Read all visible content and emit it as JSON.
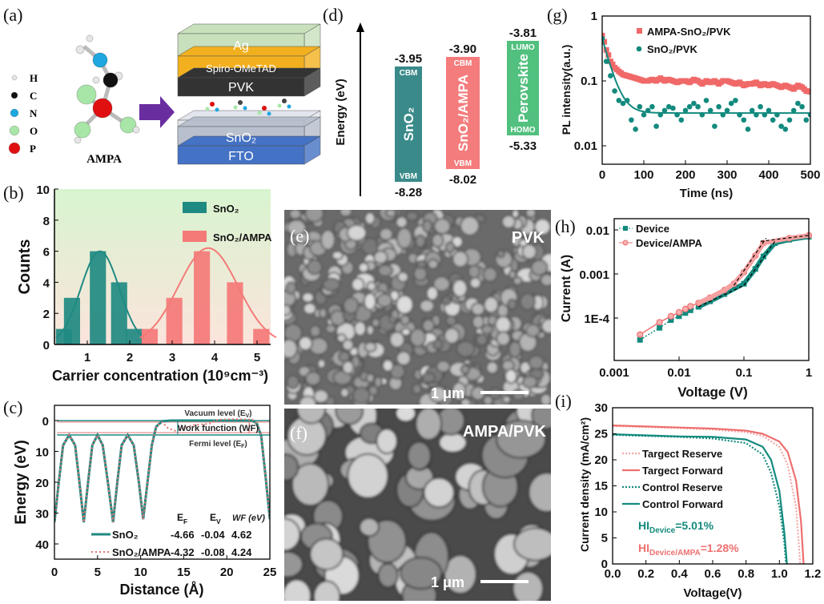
{
  "figure": {
    "panel_labels": {
      "a": "(a)",
      "b": "(b)",
      "c": "(c)",
      "d": "(d)",
      "e": "(e)",
      "f": "(f)",
      "g": "(g)",
      "h": "(h)",
      "i": "(i)"
    },
    "a": {
      "legend": [
        {
          "symbol": "H",
          "color": "#e6e6e6"
        },
        {
          "symbol": "C",
          "color": "#111111"
        },
        {
          "symbol": "N",
          "color": "#1ea7e0"
        },
        {
          "symbol": "O",
          "color": "#a8e6a8"
        },
        {
          "symbol": "P",
          "color": "#e01010"
        }
      ],
      "molecule_label": "AMPA",
      "layers": [
        {
          "label": "Ag",
          "color": "#c8e0bc"
        },
        {
          "label": "Spiro-OMeTAD",
          "color": "#f2b01e"
        },
        {
          "label": "PVK",
          "color": "#333333"
        },
        {
          "label": "SnO₂",
          "color": "#b4bccb"
        },
        {
          "label": "FTO",
          "color": "#4472c4"
        }
      ]
    },
    "d": {
      "ylabel": "Energy (eV)",
      "bands": [
        {
          "name": "SnO₂",
          "top_value": "-3.95",
          "bottom_value": "-8.28",
          "top_label": "CBM",
          "bottom_label": "VBM",
          "color": "#3a8a8a"
        },
        {
          "name": "SnO₂/AMPA",
          "top_value": "-3.90",
          "bottom_value": "-8.02",
          "top_label": "CBM",
          "bottom_label": "VBM",
          "color": "#f47c7c"
        },
        {
          "name": "Perovskite",
          "top_value": "-3.81",
          "bottom_value": "-5.33",
          "top_label": "LUMO",
          "bottom_label": "HOMO",
          "color": "#52c07e"
        }
      ]
    },
    "e": {
      "label": "PVK",
      "scale_bar": "1 μm"
    },
    "f": {
      "label": "AMPA/PVK",
      "scale_bar": "1 μm"
    }
  },
  "chart_data": [
    {
      "id": "b",
      "type": "bar",
      "xlabel": "Carrier concentration (10⁹cm⁻³)",
      "ylabel": "Counts",
      "xlim": [
        0.23,
        5.33
      ],
      "ylim": [
        0,
        10
      ],
      "xticks": [
        "1",
        "2",
        "3",
        "4",
        "5"
      ],
      "yticks": [
        "0",
        "2",
        "4",
        "6",
        "8",
        "10"
      ],
      "legend_position": "top-right",
      "background": [
        "#d8f4cf",
        "#fbe4dc"
      ],
      "series": [
        {
          "name": "SnO₂",
          "color": "#1f8a82",
          "bar_width": 0.38,
          "x": [
            0.45,
            0.64,
            1.25,
            1.75,
            2.1
          ],
          "values": [
            1,
            3,
            6,
            4,
            1
          ],
          "fit": {
            "type": "gaussian",
            "peak": 6.0,
            "center": 1.3,
            "sigma": 0.45
          }
        },
        {
          "name": "SnO₂/AMPA",
          "color": "#f47a78",
          "bar_width": 0.38,
          "x": [
            2.47,
            3.05,
            3.7,
            4.48,
            5.1
          ],
          "values": [
            1,
            3,
            6,
            4,
            1
          ],
          "fit": {
            "type": "gaussian",
            "peak": 6.2,
            "center": 3.85,
            "sigma": 0.7
          }
        }
      ]
    },
    {
      "id": "c",
      "type": "line",
      "xlabel": "Distance (Å)",
      "ylabel": "Energy (eV)",
      "xlim": [
        0,
        25
      ],
      "ylim": [
        -5,
        45
      ],
      "y_reversed": true,
      "xticks": [
        "0",
        "5",
        "10",
        "15",
        "20",
        "25"
      ],
      "yticks": [
        "0",
        "10",
        "20",
        "30",
        "40"
      ],
      "annotations": {
        "vacuum": "Vacuum level (E",
        "vacuum_sub": "V",
        "work": "Work function (WF)",
        "fermi": "Fermi level (E",
        "fermi_sub": "F"
      },
      "table_header": {
        "ef": "E",
        "ef_sub": "F",
        "ev": "E",
        "ev_sub": "V",
        "wf": "WF (eV)"
      },
      "series": [
        {
          "name": "SnO₂",
          "color": "#1f8a82",
          "style": "solid",
          "EF": "-4.66",
          "EV": "-0.04",
          "WF": "4.62",
          "points": [
            [
              0,
              33
            ],
            [
              0.5,
              20
            ],
            [
              1,
              8
            ],
            [
              1.7,
              4.7
            ],
            [
              2.4,
              8
            ],
            [
              2.9,
              20
            ],
            [
              3.4,
              33
            ],
            [
              3.9,
              20
            ],
            [
              4.4,
              8
            ],
            [
              5,
              4.7
            ],
            [
              5.6,
              8
            ],
            [
              6.2,
              20
            ],
            [
              6.8,
              33
            ],
            [
              7.3,
              20
            ],
            [
              7.8,
              8
            ],
            [
              8.5,
              4.7
            ],
            [
              9.2,
              8
            ],
            [
              9.8,
              20
            ],
            [
              10.3,
              32
            ],
            [
              10.8,
              20
            ],
            [
              11.3,
              8
            ],
            [
              11.8,
              2
            ],
            [
              12.5,
              0.2
            ],
            [
              13.5,
              0
            ],
            [
              23,
              0
            ],
            [
              23.5,
              1
            ],
            [
              24,
              5
            ],
            [
              24.5,
              18
            ],
            [
              25,
              32
            ]
          ]
        },
        {
          "name": "SnO₂/AMPA",
          "color": "#e87474",
          "style": "dotted",
          "EF": "-4.32",
          "EV": "-0.08",
          "WF": "4.24",
          "points": [
            [
              0,
              33
            ],
            [
              0.5,
              20
            ],
            [
              1,
              8
            ],
            [
              1.7,
              4.7
            ],
            [
              2.4,
              8
            ],
            [
              2.9,
              20
            ],
            [
              3.4,
              33
            ],
            [
              3.9,
              20
            ],
            [
              4.4,
              8
            ],
            [
              5,
              4.7
            ],
            [
              5.6,
              8
            ],
            [
              6.2,
              20
            ],
            [
              6.8,
              33
            ],
            [
              7.3,
              20
            ],
            [
              7.8,
              8
            ],
            [
              8.5,
              4.7
            ],
            [
              9.2,
              8
            ],
            [
              9.8,
              20
            ],
            [
              10.3,
              32
            ],
            [
              10.8,
              20
            ],
            [
              11.3,
              8
            ],
            [
              11.8,
              2
            ],
            [
              12.5,
              0.5
            ],
            [
              13.2,
              2.5
            ],
            [
              14,
              3.3
            ],
            [
              15,
              2.5
            ],
            [
              16,
              1.5
            ],
            [
              18,
              1
            ],
            [
              19,
              -0.3
            ],
            [
              21,
              -0.5
            ],
            [
              23,
              -0.3
            ],
            [
              23.5,
              1
            ],
            [
              24,
              5
            ],
            [
              24.5,
              18
            ],
            [
              25,
              32
            ]
          ]
        }
      ]
    },
    {
      "id": "g",
      "type": "scatter",
      "xlabel": "Time (ns)",
      "ylabel": "PL intensity(a.u.)",
      "xlim": [
        0,
        500
      ],
      "ylim": [
        0.005,
        1
      ],
      "y_scale": "log",
      "xticks": [
        "0",
        "100",
        "200",
        "300",
        "400",
        "500"
      ],
      "yticks": [
        "1",
        "0.1",
        "0.01"
      ],
      "legend_position": "top-right",
      "t_step": 10,
      "series": [
        {
          "name": "AMPA-SnO₂/PVK",
          "color": "#f06868",
          "marker": "square",
          "values": [
            0.5,
            0.3,
            0.2,
            0.16,
            0.14,
            0.125,
            0.12,
            0.115,
            0.11,
            0.105,
            0.1,
            0.1,
            0.105,
            0.1,
            0.11,
            0.1,
            0.105,
            0.1,
            0.095,
            0.1,
            0.1,
            0.095,
            0.105,
            0.1,
            0.09,
            0.1,
            0.095,
            0.1,
            0.09,
            0.1,
            0.1,
            0.095,
            0.09,
            0.095,
            0.085,
            0.09,
            0.09,
            0.095,
            0.085,
            0.09,
            0.085,
            0.09,
            0.085,
            0.08,
            0.085,
            0.08,
            0.075,
            0.085,
            0.08,
            0.07,
            0.068
          ]
        },
        {
          "name": "SnO₂/PVK",
          "color": "#138a7e",
          "marker": "circle",
          "values": [
            0.45,
            0.2,
            0.12,
            0.07,
            0.05,
            0.045,
            0.05,
            0.025,
            0.018,
            0.04,
            0.03,
            0.035,
            0.04,
            0.02,
            0.03,
            0.035,
            0.04,
            0.038,
            0.03,
            0.025,
            0.035,
            0.04,
            0.045,
            0.04,
            0.03,
            0.05,
            0.035,
            0.02,
            0.04,
            0.03,
            0.035,
            0.045,
            0.05,
            0.03,
            0.025,
            0.018,
            0.035,
            0.03,
            0.04,
            0.03,
            0.035,
            0.025,
            0.03,
            0.02,
            0.018,
            0.025,
            0.035,
            0.045,
            0.04,
            0.025,
            0.03
          ],
          "fit": {
            "type": "exponential",
            "offset": 0.032,
            "amplitude": 0.42,
            "tau": 18
          }
        }
      ]
    },
    {
      "id": "h",
      "type": "line",
      "xlabel": "Voltage (V)",
      "ylabel": "Current (A)",
      "xlim": [
        0.001,
        1.05
      ],
      "ylim": [
        1.1e-05,
        0.013
      ],
      "x_scale": "log",
      "y_scale": "log",
      "xticks": [
        "0.001",
        "0.01",
        "0.1",
        "1"
      ],
      "yticks": [
        "0.01",
        "0.001",
        "1E-4"
      ],
      "legend_position": "top-left",
      "series": [
        {
          "name": "Device",
          "color": "#138a7e",
          "marker": "square",
          "style": "dotted",
          "points": [
            [
              0.0025,
              3.2e-05
            ],
            [
              0.005,
              6e-05
            ],
            [
              0.0075,
              9e-05
            ],
            [
              0.01,
              0.00011
            ],
            [
              0.0125,
              0.00013
            ],
            [
              0.015,
              0.00015
            ],
            [
              0.02,
              0.00018
            ],
            [
              0.03,
              0.00024
            ],
            [
              0.05,
              0.00035
            ],
            [
              0.1,
              0.0006
            ],
            [
              0.15,
              0.0013
            ],
            [
              0.2,
              0.0025
            ],
            [
              0.3,
              0.005
            ],
            [
              0.5,
              0.006
            ],
            [
              1,
              0.007
            ]
          ]
        },
        {
          "name": "Device/AMPA",
          "color": "#f07070",
          "marker": "circle",
          "style": "solid",
          "points": [
            [
              0.0025,
              4.2e-05
            ],
            [
              0.005,
              8e-05
            ],
            [
              0.0075,
              0.00011
            ],
            [
              0.01,
              0.000135
            ],
            [
              0.0125,
              0.00016
            ],
            [
              0.015,
              0.000185
            ],
            [
              0.02,
              0.00022
            ],
            [
              0.03,
              0.00029
            ],
            [
              0.05,
              0.00043
            ],
            [
              0.07,
              0.0006
            ],
            [
              0.1,
              0.0011
            ],
            [
              0.15,
              0.0026
            ],
            [
              0.2,
              0.005
            ],
            [
              0.5,
              0.0065
            ],
            [
              1,
              0.0075
            ]
          ]
        }
      ],
      "fit_segments": [
        [
          [
            0.02,
            0.00018
          ],
          [
            0.1,
            0.00055
          ]
        ],
        [
          [
            0.07,
            0.00055
          ],
          [
            0.22,
            0.0065
          ]
        ],
        [
          [
            0.1,
            0.00055
          ],
          [
            0.3,
            0.0055
          ]
        ],
        [
          [
            0.18,
            0.0055
          ],
          [
            1,
            0.0075
          ]
        ]
      ]
    },
    {
      "id": "i",
      "type": "line",
      "xlabel": "Voltage(V)",
      "ylabel": "Current density (mA/cm²)",
      "xlim": [
        0,
        1.2
      ],
      "ylim": [
        0,
        30
      ],
      "xticks": [
        "0.0",
        "0.2",
        "0.4",
        "0.6",
        "0.8",
        "1.0",
        "1.2"
      ],
      "yticks": [
        "0",
        "5",
        "10",
        "15",
        "20",
        "25",
        "30"
      ],
      "legend_position": "center-left",
      "annotations": {
        "hi_device": "HI",
        "hi_device_sub": "Device",
        "hi_device_val": "=5.01%",
        "hi_ampa": "HI",
        "hi_ampa_sub": "Device/AMPA",
        "hi_ampa_val": "=1.28%"
      },
      "series": [
        {
          "name": "Targect Reserve",
          "color": "#f4a6a6",
          "style": "dotted",
          "points": [
            [
              0,
              26.5
            ],
            [
              0.2,
              26.3
            ],
            [
              0.4,
              26.1
            ],
            [
              0.6,
              25.8
            ],
            [
              0.8,
              25.3
            ],
            [
              0.9,
              24.6
            ],
            [
              1.0,
              22.5
            ],
            [
              1.05,
              19
            ],
            [
              1.1,
              11
            ],
            [
              1.125,
              0
            ]
          ]
        },
        {
          "name": "Targect Forward",
          "color": "#ee6f6f",
          "style": "solid",
          "points": [
            [
              0,
              26.6
            ],
            [
              0.2,
              26.4
            ],
            [
              0.4,
              26.2
            ],
            [
              0.6,
              26.0
            ],
            [
              0.8,
              25.6
            ],
            [
              0.9,
              25.0
            ],
            [
              1.0,
              23.5
            ],
            [
              1.05,
              21.5
            ],
            [
              1.1,
              16
            ],
            [
              1.13,
              8
            ],
            [
              1.145,
              0
            ]
          ]
        },
        {
          "name": "Control Reserve",
          "color": "#138a7e",
          "style": "dotted",
          "points": [
            [
              0,
              24.8
            ],
            [
              0.2,
              24.6
            ],
            [
              0.4,
              24.4
            ],
            [
              0.6,
              24.1
            ],
            [
              0.8,
              23.2
            ],
            [
              0.9,
              21
            ],
            [
              0.95,
              17.5
            ],
            [
              1.0,
              11
            ],
            [
              1.03,
              4
            ],
            [
              1.04,
              0
            ]
          ]
        },
        {
          "name": "Control Forward",
          "color": "#138a7e",
          "style": "solid",
          "points": [
            [
              0,
              24.9
            ],
            [
              0.2,
              24.7
            ],
            [
              0.4,
              24.5
            ],
            [
              0.6,
              24.4
            ],
            [
              0.8,
              23.9
            ],
            [
              0.9,
              22.5
            ],
            [
              0.95,
              20
            ],
            [
              1.0,
              14
            ],
            [
              1.03,
              6
            ],
            [
              1.045,
              0
            ]
          ]
        }
      ]
    }
  ]
}
